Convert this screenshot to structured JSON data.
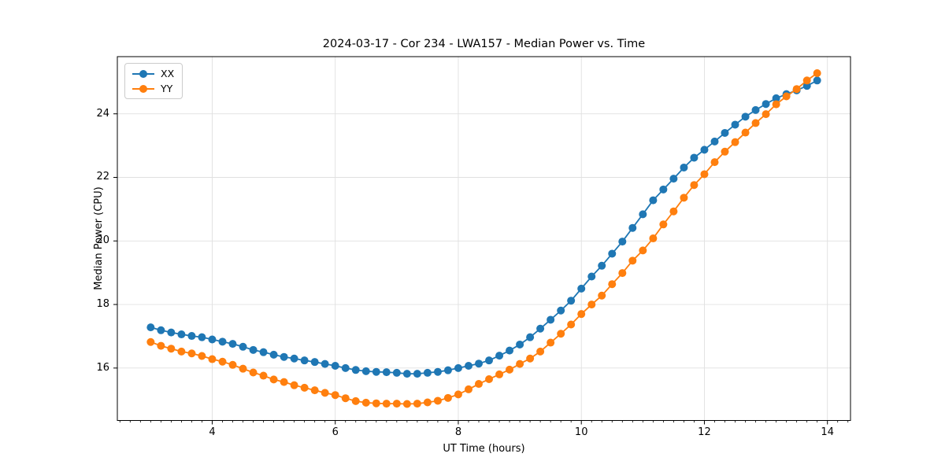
{
  "title": "2024-03-17 - Cor 234 - LWA157 - Median Power vs. Time",
  "legend": {
    "entries": [
      "XX",
      "YY"
    ]
  },
  "colors": {
    "series_xx": "#1f77b4",
    "series_yy": "#ff7f0e",
    "grid": "#e0e0e0",
    "spine": "#000000",
    "background": "#ffffff"
  },
  "chart_data": {
    "type": "line",
    "title": "2024-03-17 - Cor 234 - LWA157 - Median Power vs. Time",
    "xlabel": "UT Time (hours)",
    "ylabel": "Median Power (CPU)",
    "xlim": [
      2.458,
      14.375
    ],
    "ylim": [
      14.35,
      25.8
    ],
    "x_ticks": [
      4,
      6,
      8,
      10,
      12,
      14
    ],
    "y_ticks": [
      16,
      18,
      20,
      22,
      24
    ],
    "x_minor_tick_step_hours": 0.1667,
    "grid": true,
    "legend_position": "upper-left",
    "marker": "circle",
    "x": [
      3.0,
      3.167,
      3.333,
      3.5,
      3.667,
      3.833,
      4.0,
      4.167,
      4.333,
      4.5,
      4.667,
      4.833,
      5.0,
      5.167,
      5.333,
      5.5,
      5.667,
      5.833,
      6.0,
      6.167,
      6.333,
      6.5,
      6.667,
      6.833,
      7.0,
      7.167,
      7.333,
      7.5,
      7.667,
      7.833,
      8.0,
      8.167,
      8.333,
      8.5,
      8.667,
      8.833,
      9.0,
      9.167,
      9.333,
      9.5,
      9.667,
      9.833,
      10.0,
      10.167,
      10.333,
      10.5,
      10.667,
      10.833,
      11.0,
      11.167,
      11.333,
      11.5,
      11.667,
      11.833,
      12.0,
      12.167,
      12.333,
      12.5,
      12.667,
      12.833,
      13.0,
      13.167,
      13.333,
      13.5,
      13.667,
      13.833
    ],
    "series": [
      {
        "name": "XX",
        "color": "#1f77b4",
        "values": [
          17.28,
          17.19,
          17.12,
          17.06,
          17.01,
          16.97,
          16.9,
          16.83,
          16.76,
          16.67,
          16.57,
          16.5,
          16.42,
          16.35,
          16.3,
          16.24,
          16.19,
          16.13,
          16.07,
          16.0,
          15.94,
          15.9,
          15.88,
          15.87,
          15.85,
          15.82,
          15.82,
          15.85,
          15.88,
          15.93,
          16.0,
          16.07,
          16.14,
          16.24,
          16.39,
          16.55,
          16.74,
          16.97,
          17.24,
          17.52,
          17.81,
          18.12,
          18.5,
          18.88,
          19.22,
          19.6,
          19.98,
          20.41,
          20.84,
          21.28,
          21.62,
          21.96,
          22.31,
          22.62,
          22.87,
          23.13,
          23.4,
          23.66,
          23.91,
          24.12,
          24.31,
          24.49,
          24.62,
          24.74,
          24.88,
          25.05
        ]
      },
      {
        "name": "YY",
        "color": "#ff7f0e",
        "values": [
          16.82,
          16.7,
          16.61,
          16.52,
          16.46,
          16.38,
          16.28,
          16.2,
          16.1,
          15.98,
          15.86,
          15.76,
          15.64,
          15.56,
          15.46,
          15.38,
          15.3,
          15.22,
          15.15,
          15.05,
          14.96,
          14.91,
          14.89,
          14.88,
          14.88,
          14.87,
          14.88,
          14.92,
          14.97,
          15.06,
          15.17,
          15.33,
          15.5,
          15.65,
          15.8,
          15.95,
          16.13,
          16.3,
          16.52,
          16.8,
          17.08,
          17.37,
          17.7,
          18.0,
          18.28,
          18.64,
          18.99,
          19.38,
          19.7,
          20.08,
          20.52,
          20.93,
          21.36,
          21.76,
          22.1,
          22.48,
          22.81,
          23.11,
          23.41,
          23.71,
          23.99,
          24.3,
          24.55,
          24.78,
          25.05,
          25.28
        ]
      }
    ]
  }
}
